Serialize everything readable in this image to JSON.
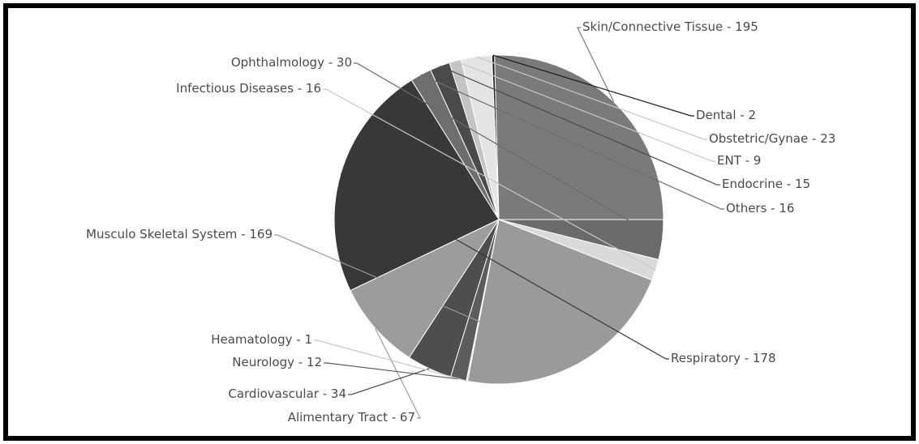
{
  "chart_data": {
    "type": "pie",
    "title": "",
    "slices": [
      {
        "label": "Skin/Connective Tissue",
        "value": 195,
        "color": "#7a7a7a",
        "text": "Skin/Connective Tissue - 195"
      },
      {
        "label": "Dental",
        "value": 2,
        "color": "#1a1a1a",
        "text": "Dental - 2"
      },
      {
        "label": "Obstetric/Gynae",
        "value": 23,
        "color": "#e4e4e4",
        "text": "Obstetric/Gynae - 23"
      },
      {
        "label": "ENT",
        "value": 9,
        "color": "#c4c4c4",
        "text": "ENT - 9"
      },
      {
        "label": "Endocrine",
        "value": 15,
        "color": "#4a4a4a",
        "text": "Endocrine - 15"
      },
      {
        "label": "Others",
        "value": 16,
        "color": "#6e6e6e",
        "text": "Others - 16"
      },
      {
        "label": "Respiratory",
        "value": 178,
        "color": "#383838",
        "text": "Respiratory - 178"
      },
      {
        "label": "Alimentary Tract",
        "value": 67,
        "color": "#9c9c9c",
        "text": "Alimentary Tract - 67"
      },
      {
        "label": "Cardiovascular",
        "value": 34,
        "color": "#4e4e4e",
        "text": "Cardiovascular - 34"
      },
      {
        "label": "Neurology",
        "value": 12,
        "color": "#5c5c5c",
        "text": "Neurology - 12"
      },
      {
        "label": "Heamatology",
        "value": 1,
        "color": "#d0d0d0",
        "text": "Heamatology - 1"
      },
      {
        "label": "Musculo Skeletal System",
        "value": 169,
        "color": "#9a9a9a",
        "text": "Musculo Skeletal System - 169"
      },
      {
        "label": "Infectious Diseases",
        "value": 16,
        "color": "#dadada",
        "text": "Infectious Diseases - 16"
      },
      {
        "label": "Ophthalmology",
        "value": 30,
        "color": "#6a6a6a",
        "text": "Ophthalmology - 30"
      }
    ],
    "legend": "none"
  }
}
